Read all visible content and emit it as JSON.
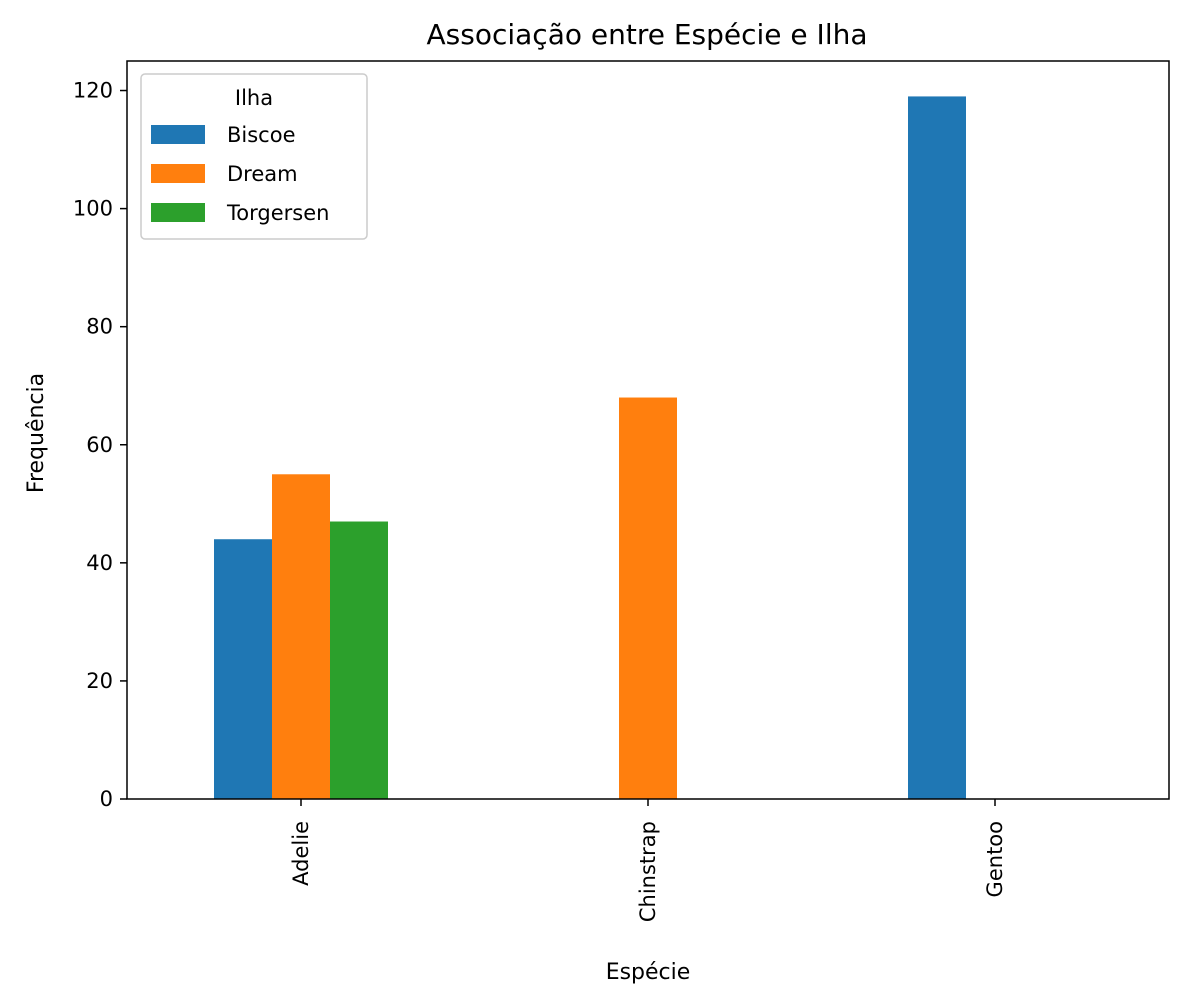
{
  "chart_data": {
    "type": "bar",
    "title": "Associação entre Espécie e Ilha",
    "xlabel": "Espécie",
    "ylabel": "Frequência",
    "categories": [
      "Adelie",
      "Chinstrap",
      "Gentoo"
    ],
    "series": [
      {
        "name": "Biscoe",
        "color": "#1f77b4",
        "values": [
          44,
          0,
          119
        ]
      },
      {
        "name": "Dream",
        "color": "#ff7f0e",
        "values": [
          55,
          68,
          0
        ]
      },
      {
        "name": "Torgersen",
        "color": "#2ca02c",
        "values": [
          47,
          0,
          0
        ]
      }
    ],
    "ylim": [
      0,
      125
    ],
    "yticks": [
      0,
      20,
      40,
      60,
      80,
      100,
      120
    ],
    "legend": {
      "title": "Ilha",
      "position": "upper-left"
    },
    "grid": false
  }
}
